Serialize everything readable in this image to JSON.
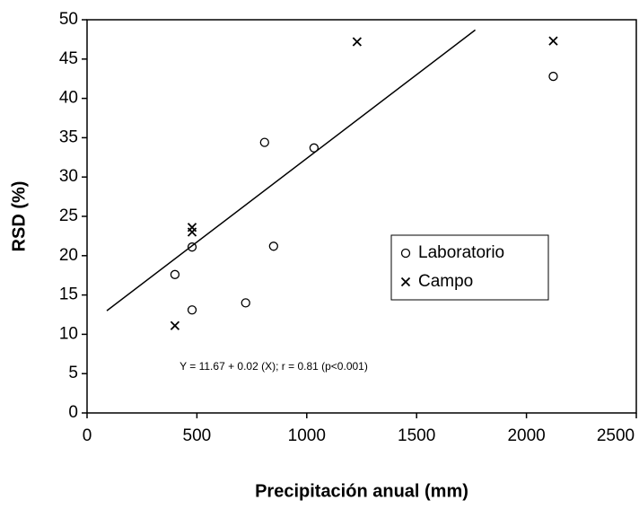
{
  "chart_data": {
    "type": "scatter",
    "xlabel": "Precipitación anual (mm)",
    "ylabel": "RSD (%)",
    "annotation": "Y = 11.67 + 0.02 (X); r = 0.81 (p<0.001)",
    "xlim": [
      0,
      2500
    ],
    "xticks": [
      0,
      500,
      1000,
      1500,
      2000,
      2500
    ],
    "ylim": [
      0,
      50
    ],
    "yticks": [
      0,
      5,
      10,
      15,
      20,
      25,
      30,
      35,
      40,
      45,
      50
    ],
    "legend": "lower right",
    "series": [
      {
        "name": "Laboratorio",
        "marker": "o",
        "color": "#000000",
        "x": [
          400,
          478,
          478,
          722,
          808,
          849,
          1033,
          2122
        ],
        "values": [
          17.6,
          21.1,
          13.1,
          14.0,
          34.4,
          21.2,
          33.7,
          42.8
        ]
      },
      {
        "name": "Campo",
        "marker": "x",
        "color": "#000000",
        "x": [
          400,
          478,
          478,
          1229,
          2122
        ],
        "values": [
          11.1,
          23.6,
          23.0,
          47.2,
          47.3
        ]
      }
    ],
    "trendline": {
      "x": [
        90,
        1767
      ],
      "values": [
        13.0,
        48.7
      ],
      "color": "#000000"
    }
  }
}
